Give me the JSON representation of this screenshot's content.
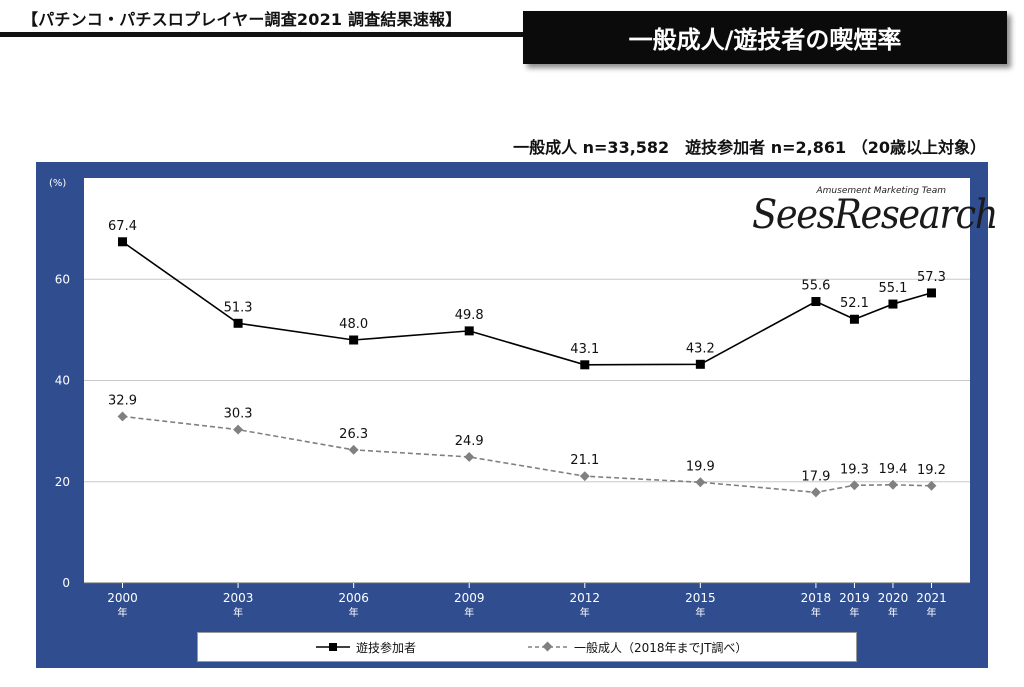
{
  "header": {
    "left_title": "【パチンコ・パチスロプレイヤー調査2021 調査結果速報】",
    "right_title": "一般成人/遊技者の喫煙率"
  },
  "subtitle": "一般成人 n=33,582　遊技参加者 n=2,861 （20歳以上対象）",
  "logo": {
    "small": "Amusement Marketing Team",
    "main": "SeesResearch"
  },
  "chart_data": {
    "type": "line",
    "ylabel": "(%)",
    "ylim": [
      0,
      80
    ],
    "yticks": [
      0,
      20,
      40,
      60
    ],
    "grid": true,
    "x": [
      2000,
      2003,
      2006,
      2009,
      2012,
      2015,
      2018,
      2019,
      2020,
      2021
    ],
    "categories": [
      "2000\n年",
      "2003\n年",
      "2006\n年",
      "2009\n年",
      "2012\n年",
      "2015\n年",
      "2018\n年",
      "2019\n年",
      "2020\n年",
      "2021\n年"
    ],
    "series": [
      {
        "name": "遊技参加者",
        "color": "#000000",
        "style": "solid",
        "marker": "square",
        "values": [
          67.4,
          51.3,
          48.0,
          49.8,
          43.1,
          43.2,
          55.6,
          52.1,
          55.1,
          57.3
        ],
        "labels": [
          "67.4",
          "51.3",
          "48.0",
          "49.8",
          "43.1",
          "43.2",
          "55.6",
          "52.1",
          "55.1",
          "57.3"
        ]
      },
      {
        "name": "一般成人（2018年までJT調べ）",
        "color": "#808080",
        "style": "dashed",
        "marker": "diamond",
        "values": [
          32.9,
          30.3,
          26.3,
          24.9,
          21.1,
          19.9,
          17.9,
          19.3,
          19.4,
          19.2
        ],
        "labels": [
          "32.9",
          "30.3",
          "26.3",
          "24.9",
          "21.1",
          "19.9",
          "17.9",
          "19.3",
          "19.4",
          "19.2"
        ]
      }
    ],
    "legend": "bottom"
  }
}
